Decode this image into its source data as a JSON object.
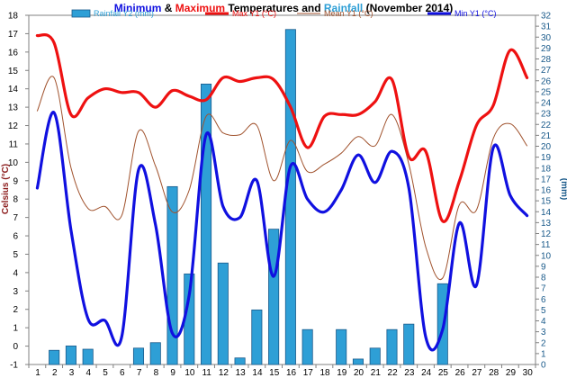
{
  "colors": {
    "min": "#1010e0",
    "max": "#ee1111",
    "rain": "#2e9fd6",
    "mean": "#a0522d",
    "rain_axis": "#1a5a8a",
    "celsius_axis": "#8b1a1a",
    "mm_axis": "#1a5a8a"
  },
  "chart_data": {
    "type": "bar+line",
    "title_parts": [
      {
        "text": "Minimum",
        "color": "#1010e0"
      },
      {
        "text": " & ",
        "color": "#000000"
      },
      {
        "text": "Maximum",
        "color": "#ee1111"
      },
      {
        "text": " Temperatures and ",
        "color": "#000000"
      },
      {
        "text": "Rainfall",
        "color": "#2e9fd6"
      },
      {
        "text": " (November 2014)",
        "color": "#000000"
      }
    ],
    "y1_label": "Celsius (°C)",
    "y2_label": "(mm)",
    "y1_range": [
      -1,
      18
    ],
    "y2_range": [
      0,
      32
    ],
    "legend": [
      {
        "name": "Rainfall Y2 (mm)",
        "kind": "bar",
        "color": "#2e9fd6"
      },
      {
        "name": "Max Y1 (°C)",
        "kind": "line",
        "color": "#ee1111"
      },
      {
        "name": "Mean Y1 (°C)",
        "kind": "line",
        "color": "#a0522d"
      },
      {
        "name": "Min Y1 (°C)",
        "kind": "line",
        "color": "#1010e0"
      }
    ],
    "x": [
      1,
      2,
      3,
      4,
      5,
      6,
      7,
      8,
      9,
      10,
      11,
      12,
      13,
      14,
      15,
      16,
      17,
      18,
      19,
      20,
      21,
      22,
      23,
      24,
      25,
      26,
      27,
      28,
      29,
      30
    ],
    "y1_ticks": [
      -1,
      0,
      1,
      2,
      3,
      4,
      5,
      6,
      7,
      8,
      9,
      10,
      11,
      12,
      13,
      14,
      15,
      16,
      17,
      18
    ],
    "y2_ticks": [
      0,
      1,
      2,
      3,
      4,
      5,
      6,
      7,
      8,
      9,
      10,
      11,
      12,
      13,
      14,
      15,
      16,
      17,
      18,
      19,
      20,
      21,
      22,
      23,
      24,
      25,
      26,
      27,
      28,
      29,
      30,
      31,
      32
    ],
    "series": [
      {
        "name": "Rainfall Y2 (mm)",
        "axis": "y2",
        "values": [
          0,
          1.3,
          1.7,
          1.4,
          0,
          0,
          1.5,
          2.0,
          16.3,
          8.3,
          25.7,
          9.3,
          0.6,
          5.0,
          12.4,
          30.7,
          3.2,
          0,
          3.2,
          0.5,
          1.5,
          3.2,
          3.7,
          0,
          7.4,
          0,
          0,
          0,
          0,
          0
        ]
      },
      {
        "name": "Max Y1 (°C)",
        "axis": "y1",
        "values": [
          16.9,
          16.5,
          12.6,
          13.5,
          14.0,
          13.8,
          13.8,
          13.0,
          13.9,
          13.6,
          13.4,
          14.6,
          14.4,
          14.6,
          14.5,
          13.0,
          10.8,
          12.5,
          12.6,
          12.6,
          13.3,
          14.5,
          10.3,
          10.6,
          6.8,
          9.0,
          12.0,
          13.1,
          16.1,
          14.6
        ]
      },
      {
        "name": "Mean Y1 (°C)",
        "axis": "y1",
        "values": [
          12.8,
          14.6,
          9.7,
          7.5,
          7.6,
          7.1,
          11.7,
          9.8,
          7.3,
          8.5,
          12.5,
          11.6,
          11.5,
          12.0,
          9.0,
          11.2,
          9.5,
          9.9,
          10.5,
          11.4,
          10.9,
          12.6,
          9.9,
          5.4,
          3.7,
          7.7,
          7.4,
          11.3,
          12.1,
          10.9
        ]
      },
      {
        "name": "Min Y1 (°C)",
        "axis": "y1",
        "values": [
          8.6,
          12.7,
          6.3,
          1.5,
          1.4,
          0.5,
          9.6,
          6.6,
          0.7,
          2.8,
          11.5,
          7.6,
          7.0,
          9.0,
          3.8,
          9.8,
          8.0,
          7.3,
          8.5,
          10.4,
          8.9,
          10.6,
          8.6,
          0.5,
          0.9,
          6.7,
          3.3,
          10.8,
          8.2,
          7.1
        ]
      }
    ]
  }
}
